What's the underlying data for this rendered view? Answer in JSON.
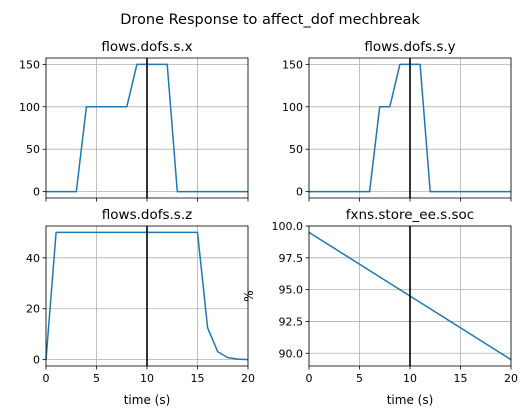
{
  "figure": {
    "suptitle": "Drone Response to affect_dof mechbreak"
  },
  "colors": {
    "line": "#1f77b4",
    "marker": "#000000",
    "grid": "#b0b0b0",
    "axis": "#000000"
  },
  "chart_data": [
    {
      "type": "line",
      "title": "flows.dofs.s.x",
      "xlabel": "",
      "ylabel": "",
      "xlim": [
        0,
        20
      ],
      "ylim": [
        -7.5,
        157.5
      ],
      "x_ticks": [
        0,
        5,
        10,
        15,
        20
      ],
      "x_tick_labels": [],
      "y_ticks": [
        0,
        50,
        100,
        150
      ],
      "y_tick_labels": [
        "0",
        "50",
        "100",
        "150"
      ],
      "grid": true,
      "vline_x": 10,
      "series": [
        {
          "x": [
            0,
            1,
            2,
            3,
            4,
            5,
            6,
            7,
            8,
            9,
            10,
            11,
            12,
            13,
            14,
            15,
            16,
            17,
            18,
            19,
            20
          ],
          "values": [
            0,
            0,
            0,
            0,
            100,
            100,
            100,
            100,
            100,
            150,
            150,
            150,
            150,
            0,
            0,
            0,
            0,
            0,
            0,
            0,
            0
          ]
        }
      ]
    },
    {
      "type": "line",
      "title": "flows.dofs.s.y",
      "xlabel": "",
      "ylabel": "",
      "xlim": [
        0,
        20
      ],
      "ylim": [
        -7.5,
        157.5
      ],
      "x_ticks": [
        0,
        5,
        10,
        15,
        20
      ],
      "x_tick_labels": [],
      "y_ticks": [
        0,
        50,
        100,
        150
      ],
      "y_tick_labels": [
        "0",
        "50",
        "100",
        "150"
      ],
      "grid": true,
      "vline_x": 10,
      "series": [
        {
          "x": [
            0,
            1,
            2,
            3,
            4,
            5,
            6,
            7,
            8,
            9,
            10,
            11,
            12,
            13,
            14,
            15,
            16,
            17,
            18,
            19,
            20
          ],
          "values": [
            0,
            0,
            0,
            0,
            0,
            0,
            0,
            100,
            100,
            150,
            150,
            150,
            0,
            0,
            0,
            0,
            0,
            0,
            0,
            0,
            0
          ]
        }
      ]
    },
    {
      "type": "line",
      "title": "flows.dofs.s.z",
      "xlabel": "time (s)",
      "ylabel": "",
      "xlim": [
        0,
        20
      ],
      "ylim": [
        -2.5,
        52.5
      ],
      "x_ticks": [
        0,
        5,
        10,
        15,
        20
      ],
      "x_tick_labels": [
        "0",
        "5",
        "10",
        "15",
        "20"
      ],
      "y_ticks": [
        0,
        20,
        40
      ],
      "y_tick_labels": [
        "0",
        "20",
        "40"
      ],
      "grid": true,
      "vline_x": 10,
      "series": [
        {
          "x": [
            0,
            1,
            2,
            3,
            4,
            5,
            6,
            7,
            8,
            9,
            10,
            11,
            12,
            13,
            14,
            15,
            16,
            17,
            18,
            19,
            20
          ],
          "values": [
            0,
            50,
            50,
            50,
            50,
            50,
            50,
            50,
            50,
            50,
            50,
            50,
            50,
            50,
            50,
            50,
            12.5,
            3.1,
            0.8,
            0.2,
            0
          ]
        }
      ]
    },
    {
      "type": "line",
      "title": "fxns.store_ee.s.soc",
      "xlabel": "time (s)",
      "ylabel": "%",
      "xlim": [
        0,
        20
      ],
      "ylim": [
        89,
        100
      ],
      "x_ticks": [
        0,
        5,
        10,
        15,
        20
      ],
      "x_tick_labels": [
        "0",
        "5",
        "10",
        "15",
        "20"
      ],
      "y_ticks": [
        90,
        92.5,
        95,
        97.5,
        100
      ],
      "y_tick_labels": [
        "90.0",
        "92.5",
        "95.0",
        "97.5",
        "100.0"
      ],
      "grid": true,
      "vline_x": 10,
      "series": [
        {
          "x": [
            0,
            20
          ],
          "values": [
            99.5,
            89.5
          ]
        }
      ]
    }
  ]
}
